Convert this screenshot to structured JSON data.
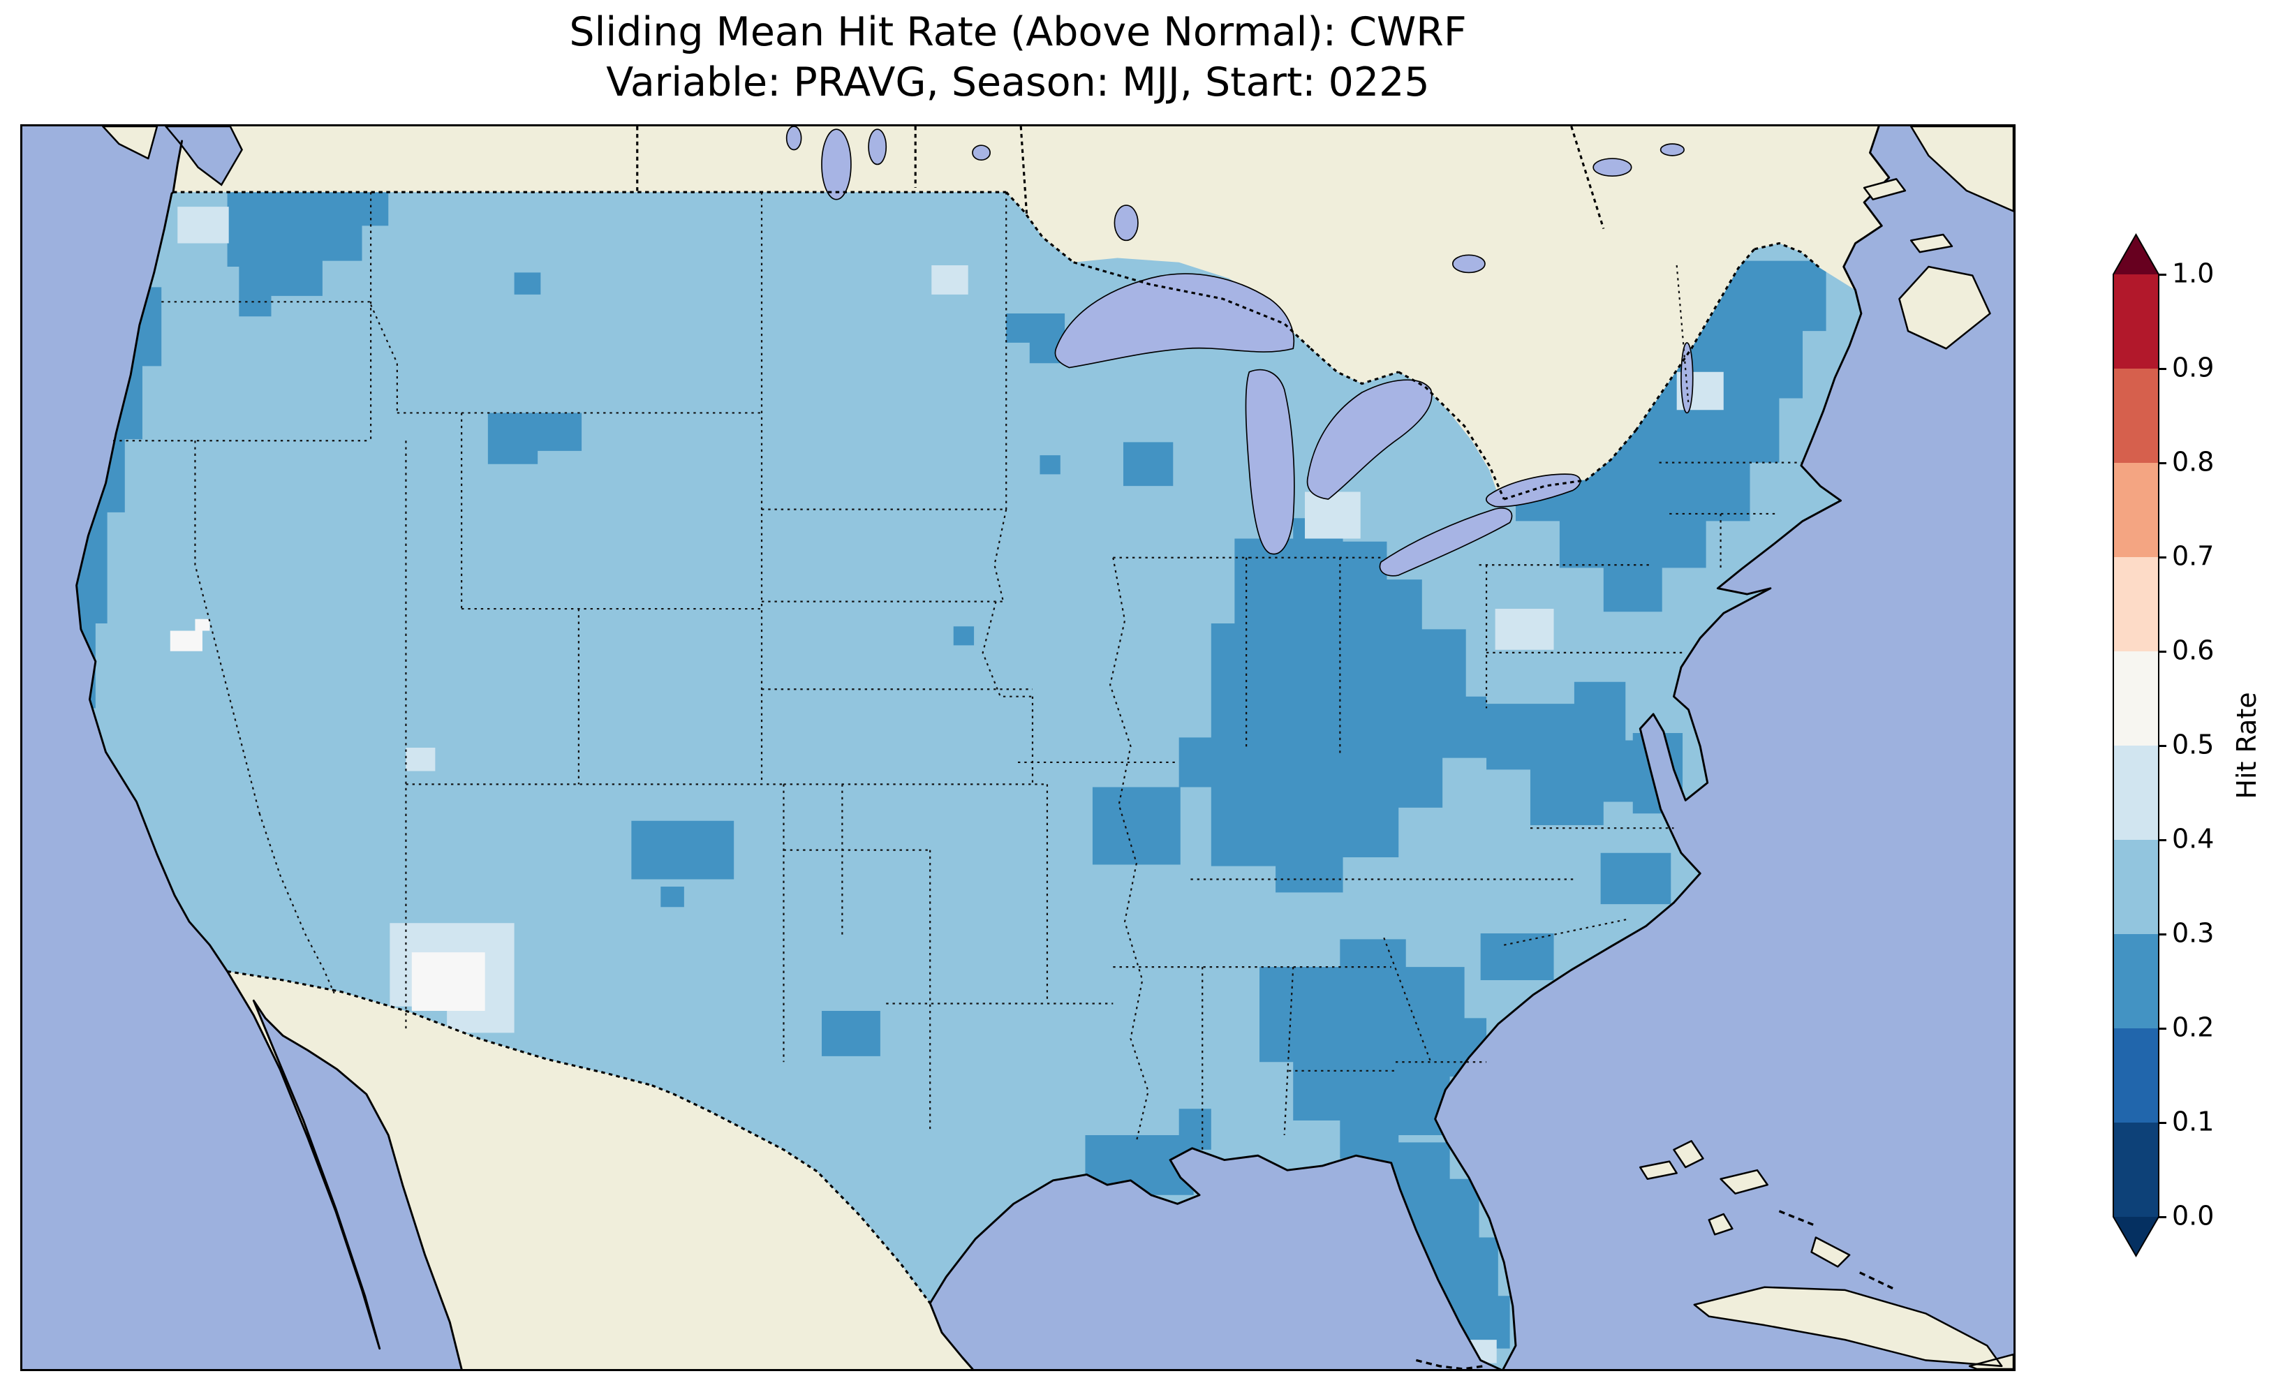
{
  "figure": {
    "title_line1": "Sliding Mean Hit Rate (Above Normal): CWRF",
    "title_line2": "Variable: PRAVG, Season: MJJ, Start: 0225"
  },
  "colorbar": {
    "label": "Hit Rate",
    "ticks_top_to_bottom": [
      "1.0",
      "0.9",
      "0.8",
      "0.7",
      "0.6",
      "0.5",
      "0.4",
      "0.3",
      "0.2",
      "0.1",
      "0.0"
    ],
    "over_arrow_color": "#67001f",
    "under_arrow_color": "#053061",
    "segments_top_to_bottom": [
      {
        "range": "0.9-1.0",
        "color": "#b2182b"
      },
      {
        "range": "0.8-0.9",
        "color": "#d6604d"
      },
      {
        "range": "0.7-0.8",
        "color": "#f4a582"
      },
      {
        "range": "0.6-0.7",
        "color": "#fddbc7"
      },
      {
        "range": "0.5-0.6",
        "color": "#f7f6f1"
      },
      {
        "range": "0.4-0.5",
        "color": "#d1e5f0"
      },
      {
        "range": "0.3-0.4",
        "color": "#92c5de"
      },
      {
        "range": "0.2-0.3",
        "color": "#4393c3"
      },
      {
        "range": "0.1-0.2",
        "color": "#2166ac"
      },
      {
        "range": "0.0-0.1",
        "color": "#0d4178"
      }
    ]
  },
  "map": {
    "colors": {
      "ocean": "#9db1de",
      "land_no_data": "#f0eedb",
      "lakes": "#a7b4e4",
      "coastline": "#000000",
      "hit_rate_0_2_to_0_3": "#4393c3",
      "hit_rate_0_3_to_0_4": "#92c5de",
      "hit_rate_0_4_to_0_5": "#d1e5f0",
      "hit_rate_0_5_to_0_6": "#f7f7f7"
    }
  },
  "chart_data": {
    "type": "heatmap",
    "title": "Sliding Mean Hit Rate (Above Normal): CWRF",
    "subtitle": "Variable: PRAVG, Season: MJJ, Start: 0225",
    "model": "CWRF",
    "variable": "PRAVG",
    "season": "MJJ",
    "start": "0225",
    "statistic": "Sliding Mean Hit Rate (Above Normal)",
    "colorbar_label": "Hit Rate",
    "colorbar_range": [
      0.0,
      1.0
    ],
    "colorbar_tick_step": 0.1,
    "colormap_style": "discrete red-blue (RdBu reversed), 0.1-wide bins, pointed over/under arrows at both ends",
    "domain": "Continental United States (CONUS) gridded data; Canada, Mexico and islands masked as no-data land; oceans and Great Lakes in blue-purple water fill",
    "observed_value_range": [
      0.2,
      0.6
    ],
    "regions_approx": [
      {
        "region": "Most of the interior West, Great Plains and Texas",
        "hit_rate": "0.3-0.4"
      },
      {
        "region": "Washington and northern Idaho",
        "hit_rate": "0.2-0.3"
      },
      {
        "region": "Oregon and northern California coast",
        "hit_rate": "0.2-0.3"
      },
      {
        "region": "Montana (small central patch)",
        "hit_rate": "0.2-0.3"
      },
      {
        "region": "Northern Minnesota (small patch)",
        "hit_rate": "0.2-0.3"
      },
      {
        "region": "Ohio Valley (Illinois-Indiana-Ohio-Kentucky-Tennessee)",
        "hit_rate": "0.2-0.3"
      },
      {
        "region": "Northeast (upstate New York, New England, Maine)",
        "hit_rate": "0.2-0.3"
      },
      {
        "region": "Virginia / Mid-Atlantic and Chesapeake area",
        "hit_rate": "0.2-0.3"
      },
      {
        "region": "Alabama-Georgia and coastal South Carolina",
        "hit_rate": "0.2-0.3"
      },
      {
        "region": "Louisiana Gulf coast",
        "hit_rate": "0.2-0.3"
      },
      {
        "region": "Florida peninsula",
        "hit_rate": "0.2-0.3"
      },
      {
        "region": "South-central New Mexico",
        "hit_rate": "0.4-0.6 (local maximum with small near-white cells)"
      },
      {
        "region": "Scattered single cells (Nevada, Michigan, Ohio, New England, Florida tip)",
        "hit_rate": "0.4-0.5"
      }
    ]
  }
}
